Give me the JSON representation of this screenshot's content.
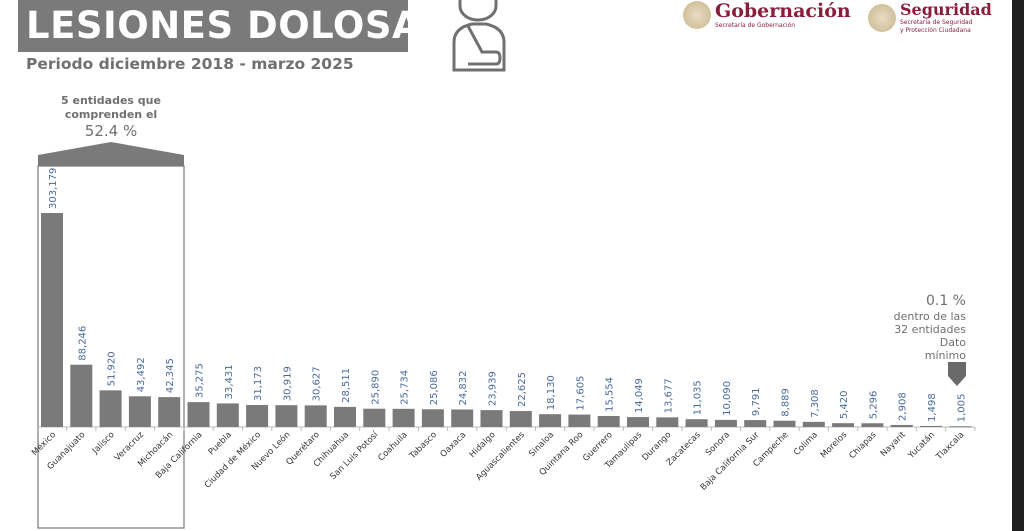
{
  "header": {
    "title": "LESIONES DOLOSAS",
    "subtitle": "Periodo diciembre 2018 - marzo 2025"
  },
  "logos": {
    "gob_name": "Gobernación",
    "gob_sub": "Secretaría de Gobernación",
    "seg_name": "Seguridad",
    "seg_sub1": "Secretaría de Seguridad",
    "seg_sub2": "y Protección Ciudadana"
  },
  "annotations": {
    "top_line1": "5 entidades que",
    "top_line2": "comprenden el",
    "top_pct": "52.4 %",
    "min_pct": "0.1 %",
    "min_line1": "dentro de las",
    "min_line2": "32 entidades",
    "min_line3": "Dato",
    "min_line4": "mínimo"
  },
  "colors": {
    "bar": "#7a7a7a",
    "value_label": "#4a6a9a",
    "title_bg": "#7a7a7a",
    "brand": "#8a1d3c"
  },
  "chart_data": {
    "type": "bar",
    "title": "LESIONES DOLOSAS",
    "xlabel": "",
    "ylabel": "",
    "ylim": [
      0,
      303179
    ],
    "categories": [
      "México",
      "Guanajuato",
      "Jalisco",
      "Veracruz",
      "Michoacán",
      "Baja California",
      "Puebla",
      "Ciudad de México",
      "Nuevo León",
      "Querétaro",
      "Chihuahua",
      "San Luis Potosí",
      "Coahuila",
      "Tabasco",
      "Oaxaca",
      "Hidalgo",
      "Aguascalientes",
      "Sinaloa",
      "Quintana Roo",
      "Guerrero",
      "Tamaulipas",
      "Durango",
      "Zacatecas",
      "Sonora",
      "Baja California Sur",
      "Campeche",
      "Colima",
      "Morelos",
      "Chiapas",
      "Nayarit",
      "Yucatán",
      "Tlaxcala"
    ],
    "values": [
      303179,
      88246,
      51920,
      43492,
      42345,
      35275,
      33431,
      31173,
      30919,
      30627,
      28511,
      25890,
      25734,
      25086,
      24832,
      23939,
      22625,
      18130,
      17605,
      15554,
      14049,
      13677,
      11035,
      10090,
      9791,
      8889,
      7308,
      5420,
      5296,
      2908,
      1498,
      1005
    ],
    "value_labels": [
      "303,179",
      "88,246",
      "51,920",
      "43,492",
      "42,345",
      "35,275",
      "33,431",
      "31,173",
      "30,919",
      "30,627",
      "28,511",
      "25,890",
      "25,734",
      "25,086",
      "24,832",
      "23,939",
      "22,625",
      "18,130",
      "17,605",
      "15,554",
      "14,049",
      "13,677",
      "11,035",
      "10,090",
      "9,791",
      "8,889",
      "7,308",
      "5,420",
      "5,296",
      "2,908",
      "1,498",
      "1,005"
    ]
  }
}
